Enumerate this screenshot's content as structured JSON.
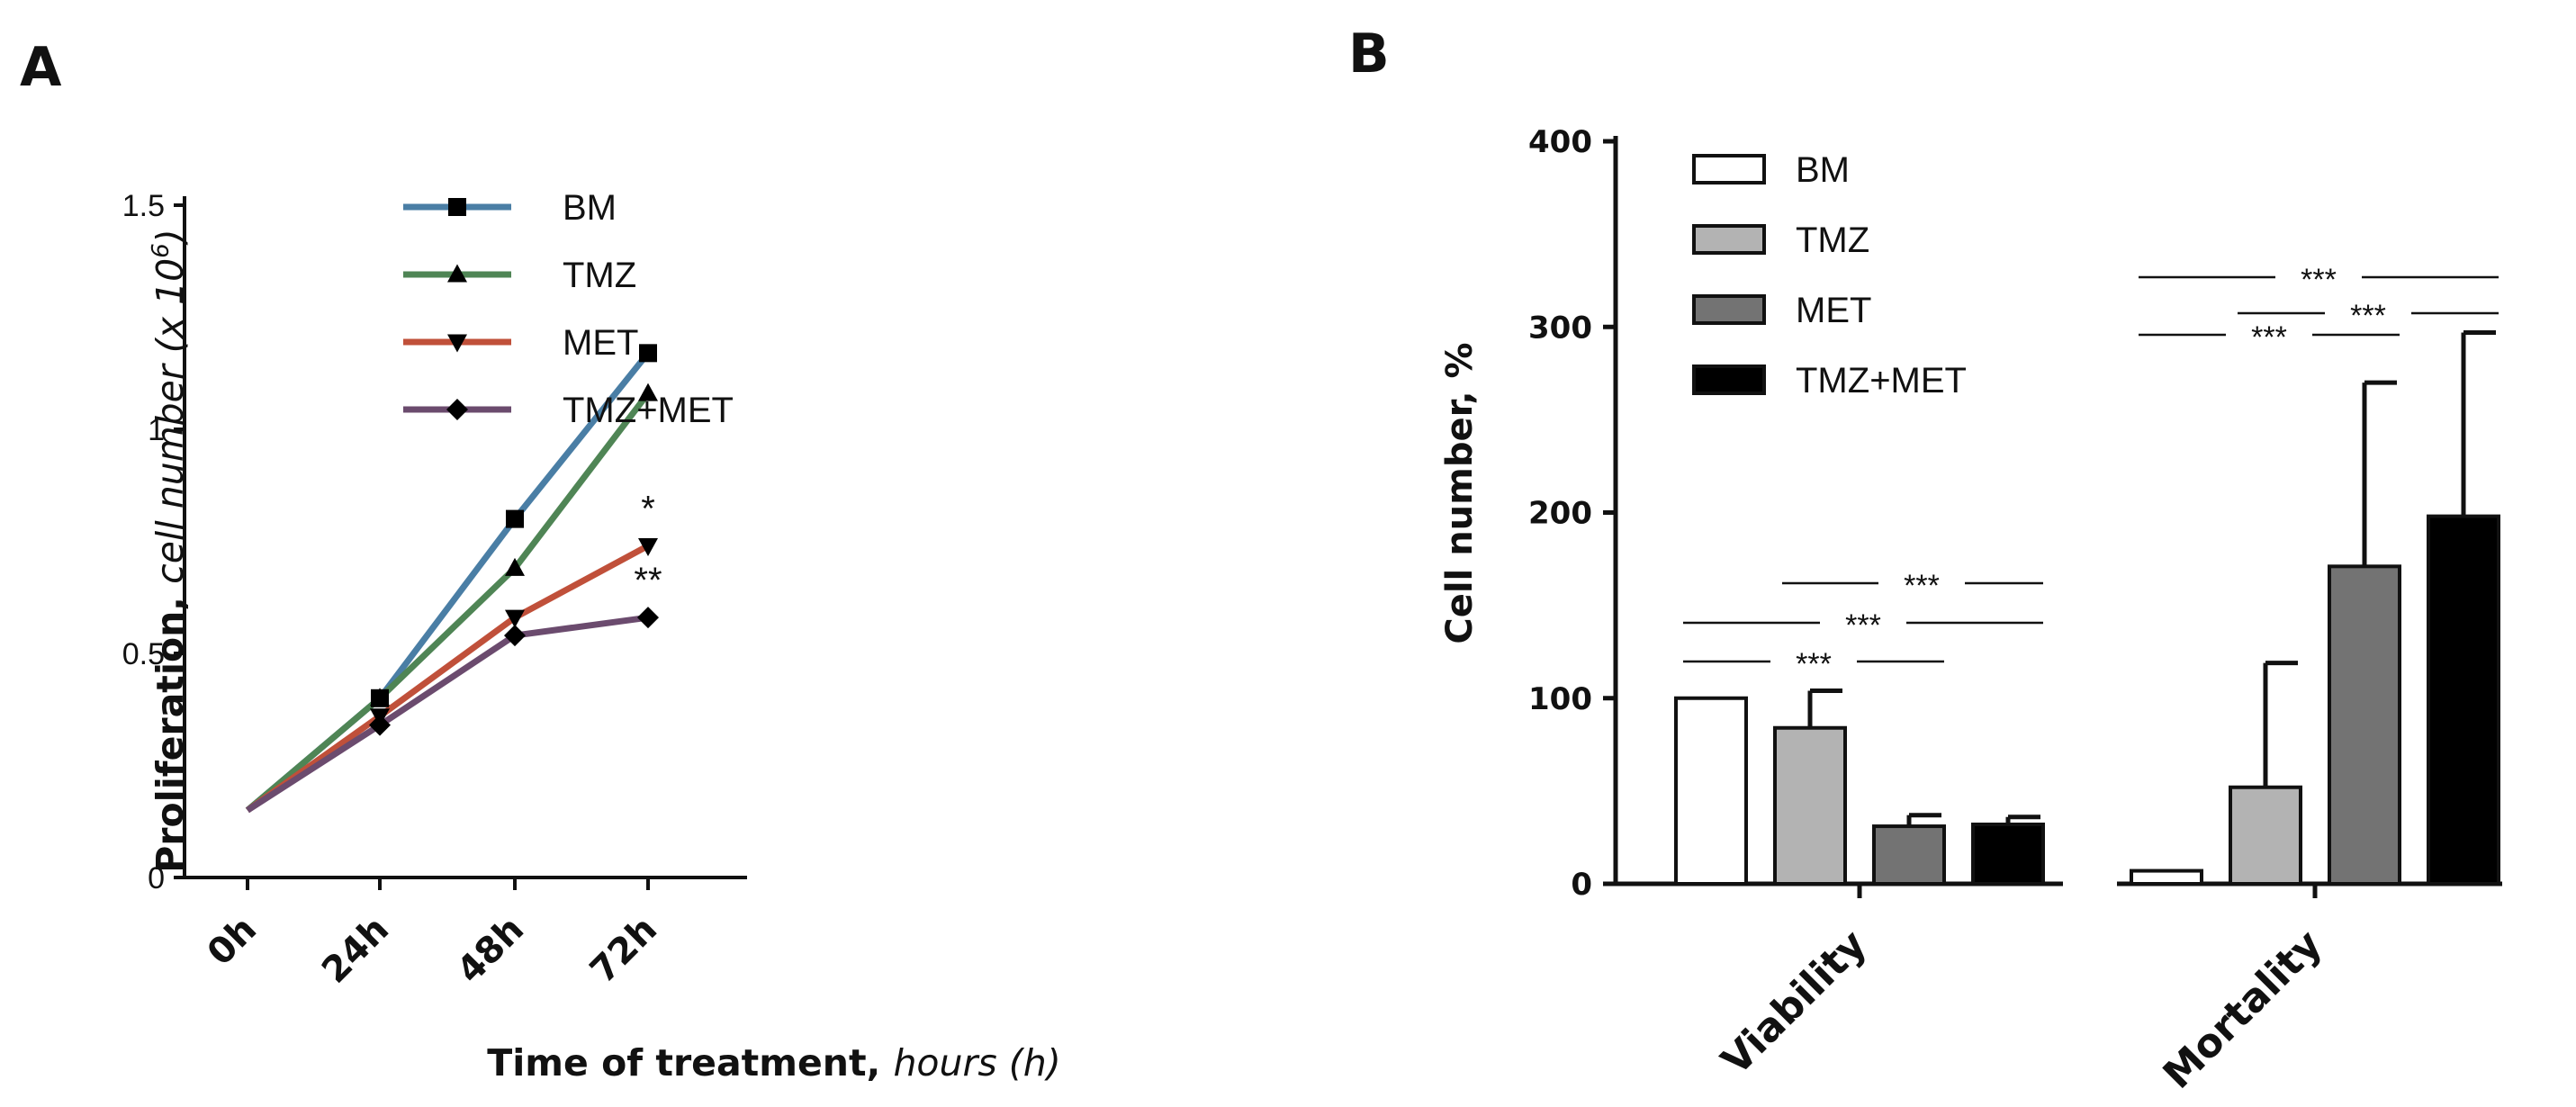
{
  "panels": {
    "a": "A",
    "b": "B"
  },
  "chart_data": [
    {
      "type": "line",
      "panel": "A",
      "categories": [
        "0h",
        "24h",
        "48h",
        "72h"
      ],
      "ylim": [
        0,
        1.5
      ],
      "yticks": [
        "0",
        "0.5",
        "1",
        "1.5"
      ],
      "ylabel_bold": "Proliferation, ",
      "ylabel_italic": "cell number (x 10",
      "ylabel_sup": "6",
      "ylabel_close": ")",
      "xlabel_bold": "Time of treatment, ",
      "xlabel_italic": "hours (h)",
      "series": [
        {
          "name": "BM",
          "color": "#4a7ea5",
          "marker": "square",
          "values": [
            0.15,
            0.4,
            0.8,
            1.17
          ]
        },
        {
          "name": "TMZ",
          "color": "#4f8555",
          "marker": "triangle-up",
          "values": [
            0.15,
            0.4,
            0.69,
            1.08
          ]
        },
        {
          "name": "MET",
          "color": "#c0503a",
          "marker": "triangle-down",
          "values": [
            0.15,
            0.36,
            0.58,
            0.74
          ]
        },
        {
          "name": "TMZ+MET",
          "color": "#6b4b6e",
          "marker": "diamond",
          "values": [
            0.15,
            0.34,
            0.54,
            0.58
          ]
        }
      ],
      "annotations": [
        {
          "text": "*",
          "series": "MET",
          "category": "72h"
        },
        {
          "text": "**",
          "series": "TMZ+MET",
          "category": "72h"
        }
      ]
    },
    {
      "type": "bar",
      "panel": "B",
      "categories": [
        "Viability",
        "Mortality"
      ],
      "ylim": [
        0,
        400
      ],
      "yticks": [
        "0",
        "100",
        "200",
        "300",
        "400"
      ],
      "ylabel": "Cell number, %",
      "series": [
        {
          "name": "BM",
          "color": "#ffffff",
          "values": [
            100,
            7
          ],
          "errors": [
            0,
            0
          ]
        },
        {
          "name": "TMZ",
          "color": "#b3b3b3",
          "values": [
            84,
            52
          ],
          "errors": [
            20,
            67
          ]
        },
        {
          "name": "MET",
          "color": "#737373",
          "values": [
            31,
            171
          ],
          "errors": [
            6,
            99
          ]
        },
        {
          "name": "TMZ+MET",
          "color": "#000000",
          "values": [
            32,
            198
          ],
          "errors": [
            4,
            99
          ]
        }
      ],
      "significance": [
        {
          "category": "Viability",
          "from": "BM",
          "to": "MET",
          "text": "***",
          "level": 1
        },
        {
          "category": "Viability",
          "from": "BM",
          "to": "TMZ+MET",
          "text": "***",
          "level": 2
        },
        {
          "category": "Viability",
          "from": "TMZ",
          "to": "TMZ+MET",
          "text": "***",
          "level": 3
        },
        {
          "category": "Mortality",
          "from": "BM",
          "to": "MET",
          "text": "***",
          "level": 1
        },
        {
          "category": "Mortality",
          "from": "TMZ",
          "to": "TMZ+MET",
          "text": "***",
          "level": 2
        },
        {
          "category": "Mortality",
          "from": "BM",
          "to": "TMZ+MET",
          "text": "***",
          "level": 3
        }
      ]
    }
  ]
}
